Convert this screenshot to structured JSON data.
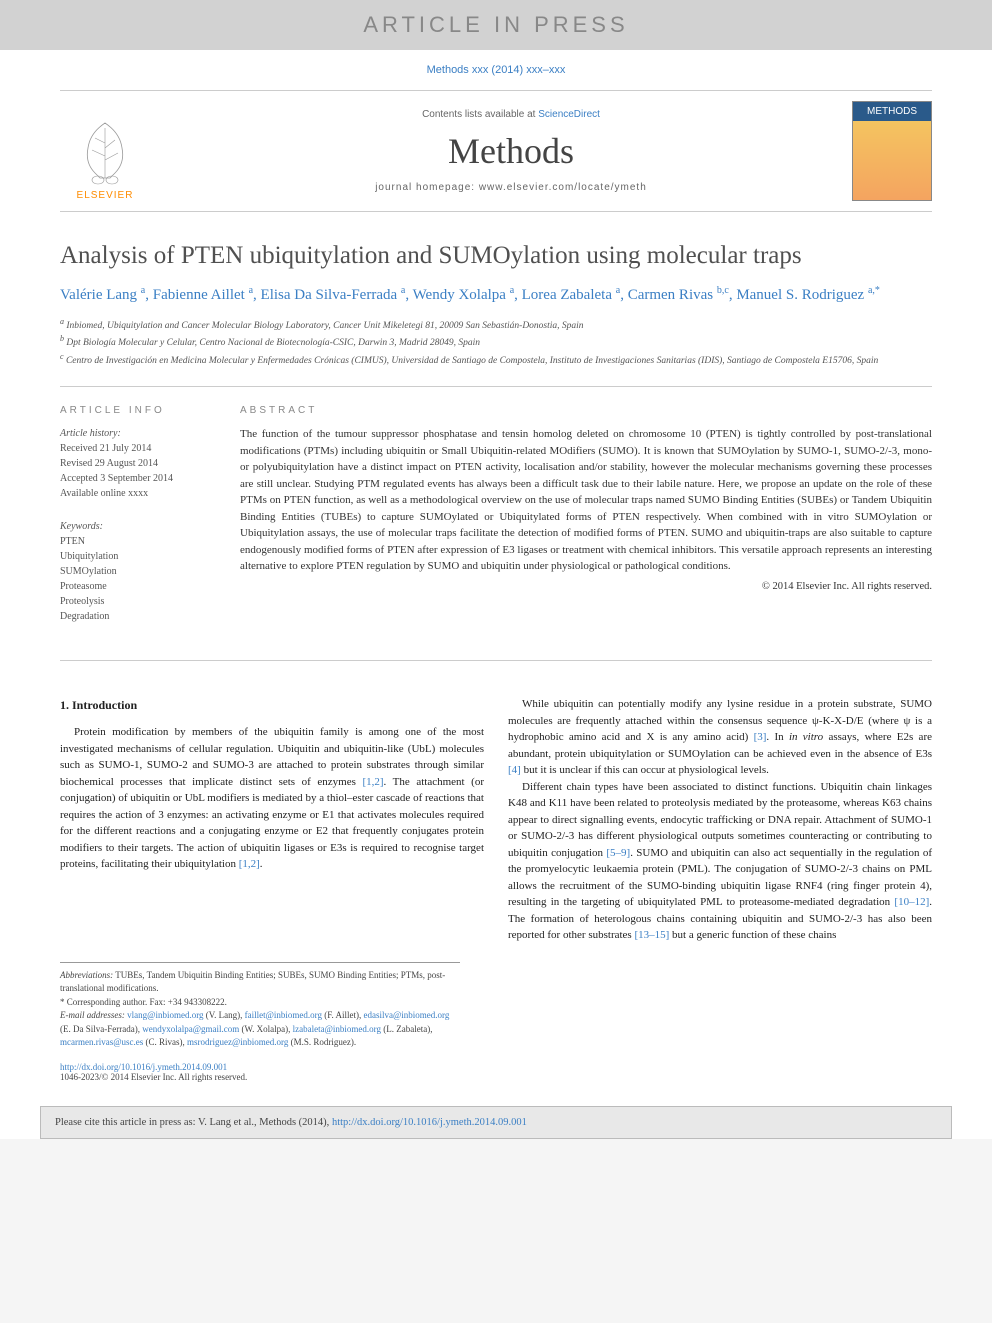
{
  "banner": "ARTICLE IN PRESS",
  "citation_top": "Methods xxx (2014) xxx–xxx",
  "header": {
    "contents_prefix": "Contents lists available at ",
    "contents_link": "ScienceDirect",
    "journal": "Methods",
    "homepage_prefix": "journal homepage: ",
    "homepage": "www.elsevier.com/locate/ymeth",
    "elsevier": "ELSEVIER",
    "cover_label": "METHODS"
  },
  "title": "Analysis of PTEN ubiquitylation and SUMOylation using molecular traps",
  "authors_html": "Valérie Lang <sup>a</sup>, Fabienne Aillet <sup>a</sup>, Elisa Da Silva-Ferrada <sup>a</sup>, Wendy Xolalpa <sup>a</sup>, Lorea Zabaleta <sup>a</sup>, Carmen Rivas <sup>b,c</sup>, Manuel S. Rodriguez <sup>a,*</sup>",
  "affiliations": [
    {
      "sup": "a",
      "text": "Inbiomed, Ubiquitylation and Cancer Molecular Biology Laboratory, Cancer Unit Mikeletegi 81, 20009 San Sebastián-Donostia, Spain"
    },
    {
      "sup": "b",
      "text": "Dpt Biología Molecular y Celular, Centro Nacional de Biotecnología-CSIC, Darwin 3, Madrid 28049, Spain"
    },
    {
      "sup": "c",
      "text": "Centro de Investigación en Medicina Molecular y Enfermedades Crónicas (CIMUS), Universidad de Santiago de Compostela, Instituto de Investigaciones Sanitarias (IDIS), Santiago de Compostela E15706, Spain"
    }
  ],
  "info": {
    "heading": "ARTICLE INFO",
    "history_label": "Article history:",
    "history": [
      "Received 21 July 2014",
      "Revised 29 August 2014",
      "Accepted 3 September 2014",
      "Available online xxxx"
    ],
    "keywords_label": "Keywords:",
    "keywords": [
      "PTEN",
      "Ubiquitylation",
      "SUMOylation",
      "Proteasome",
      "Proteolysis",
      "Degradation"
    ]
  },
  "abstract": {
    "heading": "ABSTRACT",
    "text": "The function of the tumour suppressor phosphatase and tensin homolog deleted on chromosome 10 (PTEN) is tightly controlled by post-translational modifications (PTMs) including ubiquitin or Small Ubiquitin-related MOdifiers (SUMO). It is known that SUMOylation by SUMO-1, SUMO-2/-3, mono- or polyubiquitylation have a distinct impact on PTEN activity, localisation and/or stability, however the molecular mechanisms governing these processes are still unclear. Studying PTM regulated events has always been a difficult task due to their labile nature. Here, we propose an update on the role of these PTMs on PTEN function, as well as a methodological overview on the use of molecular traps named SUMO Binding Entities (SUBEs) or Tandem Ubiquitin Binding Entities (TUBEs) to capture SUMOylated or Ubiquitylated forms of PTEN respectively. When combined with in vitro SUMOylation or Ubiquitylation assays, the use of molecular traps facilitate the detection of modified forms of PTEN. SUMO and ubiquitin-traps are also suitable to capture endogenously modified forms of PTEN after expression of E3 ligases or treatment with chemical inhibitors. This versatile approach represents an interesting alternative to explore PTEN regulation by SUMO and ubiquitin under physiological or pathological conditions.",
    "copyright": "© 2014 Elsevier Inc. All rights reserved."
  },
  "body": {
    "section_heading": "1. Introduction",
    "col1": "Protein modification by members of the ubiquitin family is among one of the most investigated mechanisms of cellular regulation. Ubiquitin and ubiquitin-like (UbL) molecules such as SUMO-1, SUMO-2 and SUMO-3 are attached to protein substrates through similar biochemical processes that implicate distinct sets of enzymes [1,2]. The attachment (or conjugation) of ubiquitin or UbL modifiers is mediated by a thiol–ester cascade of reactions that requires the action of 3 enzymes: an activating enzyme or E1 that activates molecules required for the different reactions and a conjugating enzyme or E2 that frequently conjugates protein modifiers to their targets. The action of ubiquitin ligases or E3s is required to recognise target proteins, facilitating their ubiquitylation [1,2].",
    "col2_p1": "While ubiquitin can potentially modify any lysine residue in a protein substrate, SUMO molecules are frequently attached within the consensus sequence ψ-K-X-D/E (where ψ is a hydrophobic amino acid and X is any amino acid) [3]. In in vitro assays, where E2s are abundant, protein ubiquitylation or SUMOylation can be achieved even in the absence of E3s [4] but it is unclear if this can occur at physiological levels.",
    "col2_p2": "Different chain types have been associated to distinct functions. Ubiquitin chain linkages K48 and K11 have been related to proteolysis mediated by the proteasome, whereas K63 chains appear to direct signalling events, endocytic trafficking or DNA repair. Attachment of SUMO-1 or SUMO-2/-3 has different physiological outputs sometimes counteracting or contributing to ubiquitin conjugation [5–9]. SUMO and ubiquitin can also act sequentially in the regulation of the promyelocytic leukaemia protein (PML). The conjugation of SUMO-2/-3 chains on PML allows the recruitment of the SUMO-binding ubiquitin ligase RNF4 (ring finger protein 4), resulting in the targeting of ubiquitylated PML to proteasome-mediated degradation [10–12]. The formation of heterologous chains containing ubiquitin and SUMO-2/-3 has also been reported for other substrates [13–15] but a generic function of these chains"
  },
  "footnotes": {
    "abbrev_label": "Abbreviations:",
    "abbrev": " TUBEs, Tandem Ubiquitin Binding Entities; SUBEs, SUMO Binding Entities; PTMs, post-translational modifications.",
    "corr": "* Corresponding author. Fax: +34 943308222.",
    "email_label": "E-mail addresses:",
    "emails": " vlang@inbiomed.org (V. Lang), faillet@inbiomed.org (F. Aillet), edasilva@inbiomed.org (E. Da Silva-Ferrada), wendyxolalpa@gmail.com (W. Xolalpa), lzabaleta@inbiomed.org (L. Zabaleta), mcarmen.rivas@usc.es (C. Rivas), msrodriguez@inbiomed.org (M.S. Rodriguez)."
  },
  "doi": {
    "link": "http://dx.doi.org/10.1016/j.ymeth.2014.09.001",
    "issn": "1046-2023/© 2014 Elsevier Inc. All rights reserved."
  },
  "cite_footer": {
    "prefix": "Please cite this article in press as: V. Lang et al., Methods (2014), ",
    "link": "http://dx.doi.org/10.1016/j.ymeth.2014.09.001"
  },
  "colors": {
    "link": "#3b7fc4",
    "banner_bg": "#d2d2d2",
    "banner_text": "#888888",
    "elsevier_orange": "#ff8c00"
  }
}
